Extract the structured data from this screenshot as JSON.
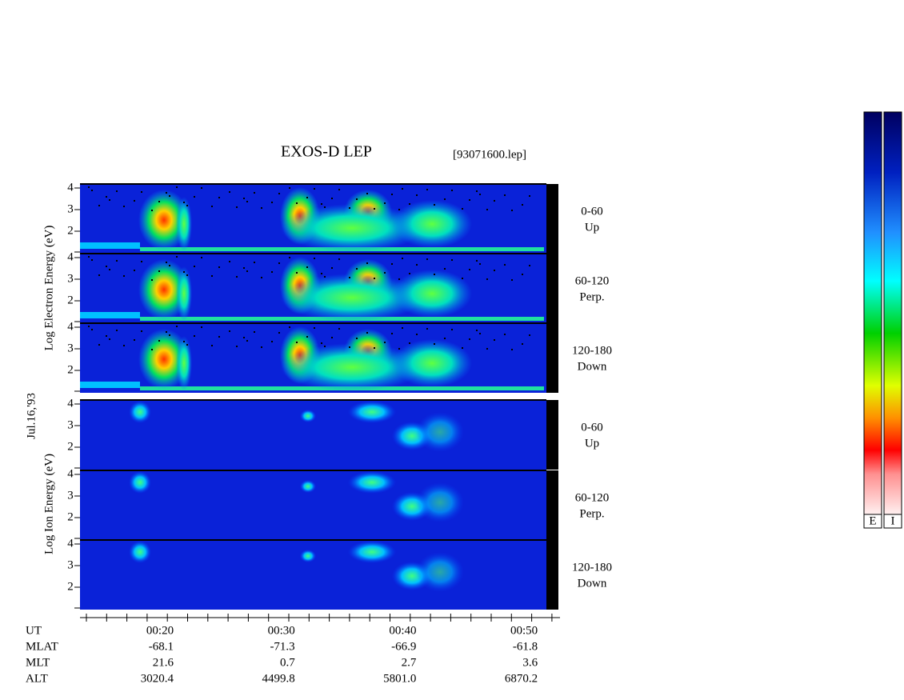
{
  "title": "EXOS-D LEP",
  "file": "[93071600.lep]",
  "date_label": "Jul.16,'93",
  "electron_axis": "Log  Electron  Energy (eV)",
  "ion_axis": "Log   Ion   Energy (eV)",
  "energy_tick_labels": [
    "2",
    "3",
    "4"
  ],
  "panels": [
    {
      "angle": "0-60",
      "direction": "Up"
    },
    {
      "angle": "60-120",
      "direction": "Perp."
    },
    {
      "angle": "120-180",
      "direction": "Down"
    },
    {
      "angle": "0-60",
      "direction": "Up"
    },
    {
      "angle": "60-120",
      "direction": "Perp."
    },
    {
      "angle": "120-180",
      "direction": "Down"
    }
  ],
  "ephemeris": [
    {
      "label": "UT",
      "values": [
        "00:20",
        "00:30",
        "00:40",
        "00:50"
      ]
    },
    {
      "label": "MLAT",
      "values": [
        "-68.1",
        "-71.3",
        "-66.9",
        "-61.8"
      ]
    },
    {
      "label": "MLT",
      "values": [
        "21.6",
        "0.7",
        "2.7",
        "3.6"
      ]
    },
    {
      "label": "ALT",
      "values": [
        "3020.4",
        "4499.8",
        "5801.0",
        "6870.2"
      ]
    }
  ],
  "colorbars": [
    "E",
    "I"
  ]
}
